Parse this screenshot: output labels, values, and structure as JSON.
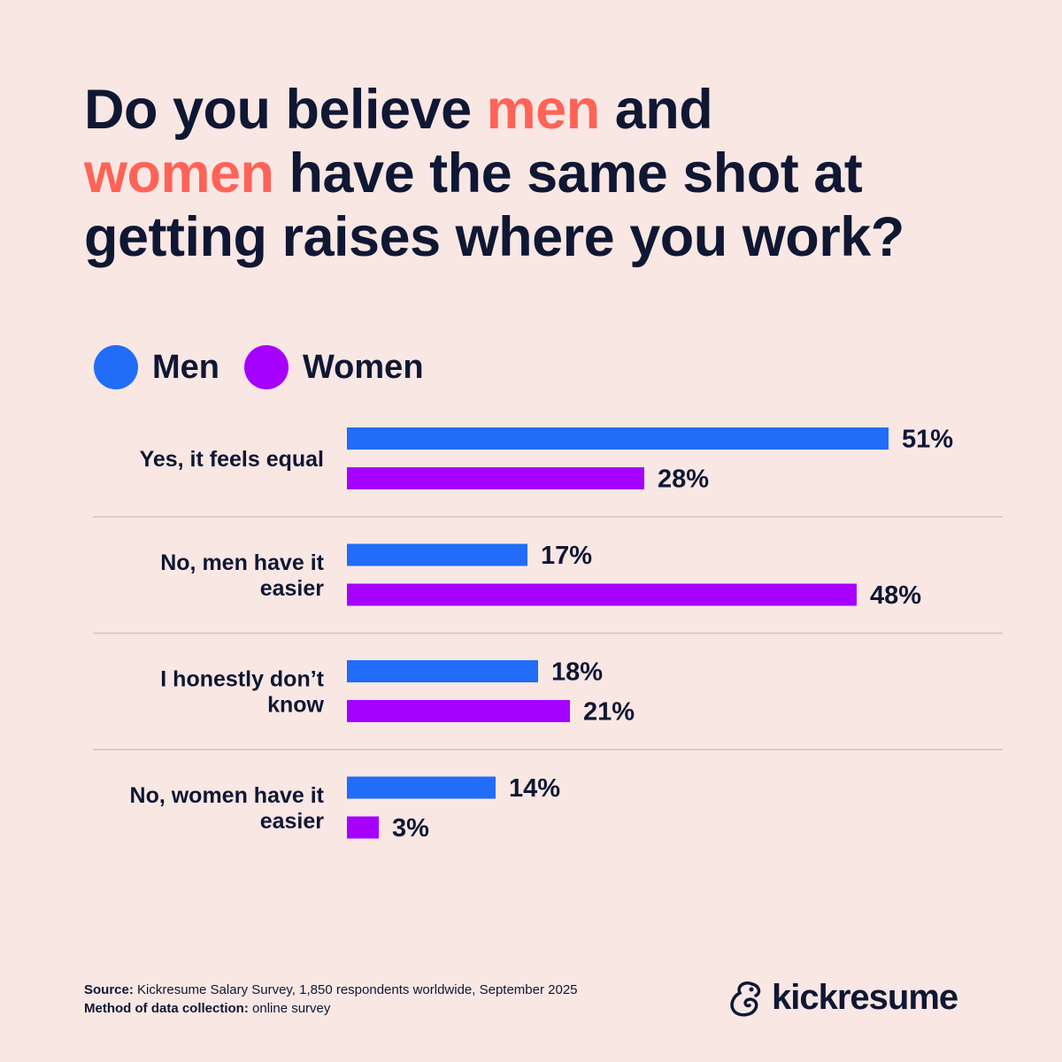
{
  "title": {
    "part1": "Do you believe ",
    "accent1": "men",
    "part2": " and ",
    "accent2": "women",
    "part3": " have the same shot at getting raises where you work?"
  },
  "colors": {
    "men": "#216cf8",
    "women": "#a600ff",
    "accent": "#ff6357",
    "background": "#f9e7e4",
    "text": "#0f1733",
    "divider": "#cfc2c0"
  },
  "legend": [
    {
      "label": "Men",
      "color": "#216cf8"
    },
    {
      "label": "Women",
      "color": "#a600ff"
    }
  ],
  "chart_data": {
    "type": "bar",
    "orientation": "horizontal",
    "categories": [
      [
        "Yes, it feels equal"
      ],
      [
        "No, men have it",
        "easier"
      ],
      [
        "I honestly don’t",
        "know"
      ],
      [
        "No, women have it",
        "easier"
      ]
    ],
    "series": [
      {
        "name": "Men",
        "values": [
          51,
          17,
          18,
          14
        ],
        "labels": [
          "51%",
          "17%",
          "18%",
          "14%"
        ]
      },
      {
        "name": "Women",
        "values": [
          28,
          48,
          21,
          3
        ],
        "labels": [
          "28%",
          "48%",
          "21%",
          "3%"
        ]
      }
    ],
    "unit": "%",
    "grid": false,
    "legend_placement": "top-left"
  },
  "footer": {
    "source_label": "Source:",
    "source_text": " Kickresume Salary Survey, 1,850 respondents worldwide, September 2025",
    "method_label": "Method of data collection:",
    "method_text": " online survey"
  },
  "logo": {
    "text": "kickresume",
    "icon": "chameleon-logo-icon"
  }
}
